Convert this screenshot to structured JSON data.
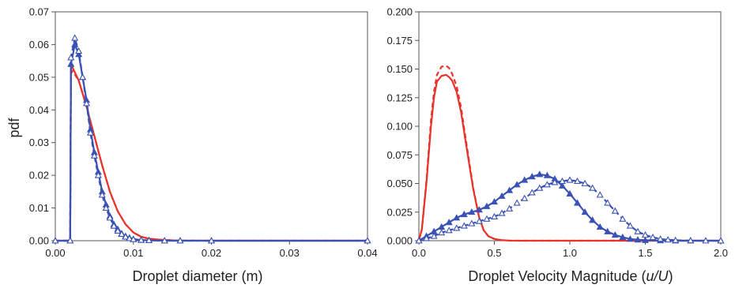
{
  "chart_data": [
    {
      "type": "line",
      "xlabel": "Droplet diameter (m)",
      "ylabel": "pdf",
      "xlim": [
        0,
        0.04
      ],
      "ylim": [
        0,
        0.07
      ],
      "xticks": [
        "0.00",
        "0.01",
        "0.02",
        "0.03",
        "0.04"
      ],
      "yticks": [
        "0.00",
        "0.01",
        "0.02",
        "0.03",
        "0.04",
        "0.05",
        "0.06",
        "0.07"
      ],
      "colors": {
        "red": "#e8322a",
        "blue": "#3a52b4"
      },
      "series": [
        {
          "color": "red",
          "style": "solid",
          "marker": "none",
          "x": [
            0,
            0.0019,
            0.002,
            0.0022,
            0.003,
            0.004,
            0.005,
            0.006,
            0.007,
            0.008,
            0.009,
            0.01,
            0.011,
            0.012,
            0.014,
            0.016,
            0.02,
            0.04
          ],
          "y": [
            0,
            0,
            0.053,
            0.053,
            0.049,
            0.041,
            0.032,
            0.023,
            0.015,
            0.009,
            0.005,
            0.0025,
            0.0012,
            0.0006,
            0.0002,
            5e-05,
            0,
            0
          ]
        },
        {
          "color": "red",
          "style": "dashed",
          "marker": "none",
          "x": [
            0,
            0.0019,
            0.002,
            0.0022,
            0.003,
            0.004,
            0.005,
            0.006,
            0.007,
            0.008,
            0.009,
            0.01,
            0.011,
            0.012,
            0.014,
            0.016,
            0.02,
            0.04
          ],
          "y": [
            0,
            0,
            0.051,
            0.052,
            0.049,
            0.041,
            0.032,
            0.023,
            0.015,
            0.009,
            0.005,
            0.0025,
            0.0012,
            0.0006,
            0.0002,
            5e-05,
            0,
            0
          ]
        },
        {
          "color": "blue",
          "style": "solid",
          "marker": "filled-triangle",
          "x": [
            0,
            0.0019,
            0.002,
            0.0025,
            0.003,
            0.0035,
            0.004,
            0.0045,
            0.005,
            0.0055,
            0.006,
            0.0065,
            0.007,
            0.0075,
            0.008,
            0.0085,
            0.009,
            0.0095,
            0.01,
            0.011,
            0.012,
            0.014,
            0.016,
            0.02,
            0.04
          ],
          "y": [
            0,
            0,
            0.054,
            0.06,
            0.057,
            0.05,
            0.043,
            0.034,
            0.027,
            0.021,
            0.015,
            0.011,
            0.0075,
            0.005,
            0.0035,
            0.0022,
            0.0014,
            0.0009,
            0.0005,
            0.0002,
            0.0001,
            0,
            0,
            0,
            0
          ]
        },
        {
          "color": "blue",
          "style": "dashed",
          "marker": "open-triangle",
          "x": [
            0,
            0.0019,
            0.002,
            0.0025,
            0.003,
            0.0035,
            0.004,
            0.0045,
            0.005,
            0.0055,
            0.006,
            0.0065,
            0.007,
            0.0075,
            0.008,
            0.0085,
            0.009,
            0.0095,
            0.01,
            0.011,
            0.012,
            0.014,
            0.016,
            0.02,
            0.04
          ],
          "y": [
            0,
            0,
            0.056,
            0.062,
            0.058,
            0.05,
            0.042,
            0.033,
            0.026,
            0.02,
            0.014,
            0.01,
            0.007,
            0.0045,
            0.003,
            0.002,
            0.0012,
            0.0007,
            0.0004,
            0.0002,
            0.0001,
            0,
            0,
            0,
            0
          ]
        }
      ]
    },
    {
      "type": "line",
      "xlabel": "Droplet Velocity Magnitude (",
      "xlabel_italic": "u/U",
      "xlabel_end": ")",
      "ylabel": "",
      "xlim": [
        0,
        2
      ],
      "ylim": [
        0,
        0.2
      ],
      "xticks": [
        "0.0",
        "0.5",
        "1.0",
        "1.5",
        "2.0"
      ],
      "yticks": [
        "0.000",
        "0.025",
        "0.050",
        "0.075",
        "0.100",
        "0.125",
        "0.150",
        "0.175",
        "0.200"
      ],
      "colors": {
        "red": "#e8322a",
        "blue": "#3a52b4"
      },
      "series": [
        {
          "color": "red",
          "style": "solid",
          "marker": "none",
          "x": [
            0,
            0.02,
            0.05,
            0.08,
            0.1,
            0.12,
            0.15,
            0.18,
            0.2,
            0.22,
            0.25,
            0.28,
            0.3,
            0.33,
            0.36,
            0.4,
            0.43,
            0.46,
            0.5,
            0.55,
            0.6,
            0.7,
            2.0
          ],
          "y": [
            0,
            0.01,
            0.05,
            0.1,
            0.125,
            0.139,
            0.144,
            0.145,
            0.143,
            0.14,
            0.13,
            0.112,
            0.095,
            0.07,
            0.045,
            0.02,
            0.009,
            0.004,
            0.0015,
            0.0005,
            0.0001,
            0,
            0
          ]
        },
        {
          "color": "red",
          "style": "dashed",
          "marker": "none",
          "x": [
            0,
            0.02,
            0.05,
            0.08,
            0.1,
            0.12,
            0.15,
            0.18,
            0.2,
            0.22,
            0.25,
            0.28,
            0.3,
            0.33,
            0.36,
            0.4,
            0.43,
            0.46,
            0.5,
            0.55,
            0.6,
            0.7,
            2.0
          ],
          "y": [
            0,
            0.01,
            0.052,
            0.105,
            0.13,
            0.145,
            0.152,
            0.153,
            0.151,
            0.146,
            0.135,
            0.116,
            0.098,
            0.072,
            0.046,
            0.02,
            0.009,
            0.004,
            0.0015,
            0.0005,
            0.0001,
            0,
            0
          ]
        },
        {
          "color": "blue",
          "style": "solid",
          "marker": "filled-triangle",
          "x": [
            0,
            0.05,
            0.1,
            0.15,
            0.2,
            0.25,
            0.3,
            0.35,
            0.4,
            0.45,
            0.5,
            0.55,
            0.6,
            0.65,
            0.7,
            0.75,
            0.8,
            0.85,
            0.9,
            0.95,
            1.0,
            1.05,
            1.1,
            1.15,
            1.2,
            1.25,
            1.3,
            1.35,
            1.4,
            1.45,
            1.5,
            1.6,
            1.7,
            1.8,
            2.0
          ],
          "y": [
            0,
            0.004,
            0.008,
            0.012,
            0.016,
            0.02,
            0.023,
            0.025,
            0.027,
            0.03,
            0.034,
            0.039,
            0.044,
            0.049,
            0.053,
            0.056,
            0.058,
            0.057,
            0.054,
            0.048,
            0.041,
            0.033,
            0.025,
            0.018,
            0.012,
            0.008,
            0.005,
            0.003,
            0.0015,
            0.0008,
            0.0004,
            0.0001,
            0,
            0,
            0
          ]
        },
        {
          "color": "blue",
          "style": "dashed",
          "marker": "open-triangle",
          "x": [
            0,
            0.05,
            0.1,
            0.15,
            0.2,
            0.25,
            0.3,
            0.35,
            0.4,
            0.45,
            0.5,
            0.55,
            0.6,
            0.65,
            0.7,
            0.75,
            0.8,
            0.85,
            0.9,
            0.95,
            1.0,
            1.05,
            1.1,
            1.15,
            1.2,
            1.25,
            1.3,
            1.35,
            1.4,
            1.45,
            1.5,
            1.55,
            1.6,
            1.65,
            1.7,
            1.8,
            1.9,
            2.0
          ],
          "y": [
            0,
            0.002,
            0.004,
            0.007,
            0.009,
            0.011,
            0.013,
            0.015,
            0.017,
            0.019,
            0.021,
            0.024,
            0.028,
            0.033,
            0.037,
            0.042,
            0.046,
            0.049,
            0.051,
            0.052,
            0.053,
            0.052,
            0.05,
            0.046,
            0.04,
            0.033,
            0.026,
            0.019,
            0.013,
            0.008,
            0.005,
            0.003,
            0.0015,
            0.0008,
            0.0004,
            0.0001,
            0,
            0
          ]
        }
      ]
    }
  ]
}
